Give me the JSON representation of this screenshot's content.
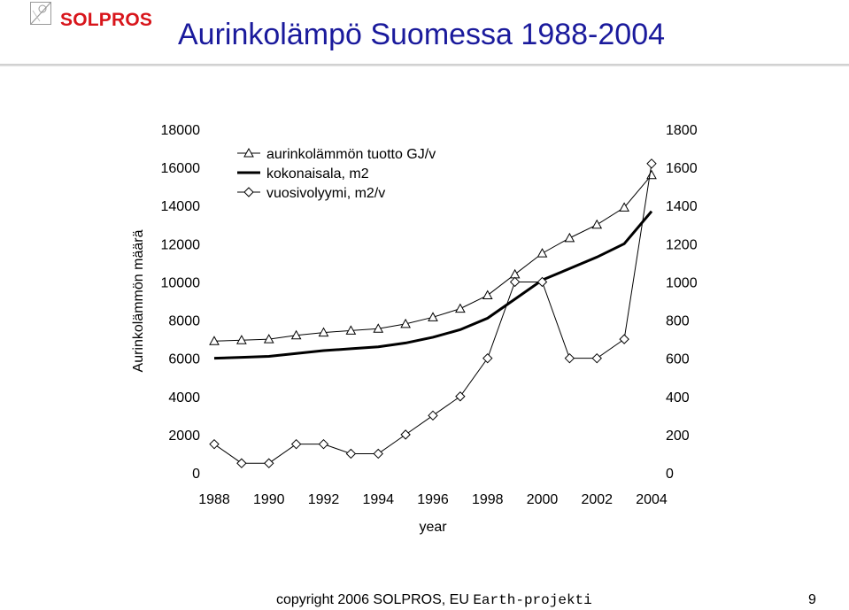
{
  "header": {
    "logo_text": "SOLPROS",
    "title": "Aurinkolämpö Suomessa 1988-2004"
  },
  "footer": {
    "copyright_prefix": "copyright 2006 SOLPROS, EU ",
    "copyright_suffix": "Earth-projekti",
    "page_number": "9"
  },
  "colors": {
    "logo_red": "#d8151b",
    "title_blue": "#1a1a9c",
    "line": "#000000"
  },
  "chart_data": {
    "type": "line",
    "title": "",
    "xlabel": "year",
    "ylabel_left": "Aurinkolämmön määrä",
    "x": [
      1988,
      1989,
      1990,
      1991,
      1992,
      1993,
      1994,
      1995,
      1996,
      1997,
      1998,
      1999,
      2000,
      2001,
      2002,
      2003,
      2004
    ],
    "x_ticks": [
      "1988",
      "1990",
      "1992",
      "1994",
      "1996",
      "1998",
      "2000",
      "2002",
      "2004"
    ],
    "y_left": {
      "range": [
        0,
        18000
      ],
      "ticks": [
        "0",
        "2000",
        "4000",
        "6000",
        "8000",
        "10000",
        "12000",
        "14000",
        "16000",
        "18000"
      ]
    },
    "y_right": {
      "range": [
        0,
        1800
      ],
      "ticks": [
        "0",
        "200",
        "400",
        "600",
        "800",
        "1000",
        "1200",
        "1400",
        "1600",
        "1800"
      ]
    },
    "grid": false,
    "legend_position": "top-left",
    "series": [
      {
        "name": "aurinkolämmön tuotto GJ/v",
        "axis": "left",
        "marker": "triangle",
        "values": [
          6900,
          6950,
          7000,
          7200,
          7350,
          7450,
          7550,
          7800,
          8150,
          8600,
          9300,
          10400,
          11500,
          12300,
          13000,
          13900,
          15600
        ]
      },
      {
        "name": "kokonaisala, m2",
        "axis": "left",
        "marker": "none",
        "bold": true,
        "values": [
          6000,
          6050,
          6100,
          6250,
          6400,
          6500,
          6600,
          6800,
          7100,
          7500,
          8100,
          9100,
          10100,
          10700,
          11300,
          12000,
          13700
        ]
      },
      {
        "name": "vuosivolyymi, m2/v",
        "axis": "right",
        "marker": "diamond",
        "values": [
          150,
          50,
          50,
          150,
          150,
          100,
          100,
          200,
          300,
          400,
          600,
          1000,
          1000,
          600,
          600,
          700,
          1620
        ]
      }
    ]
  }
}
